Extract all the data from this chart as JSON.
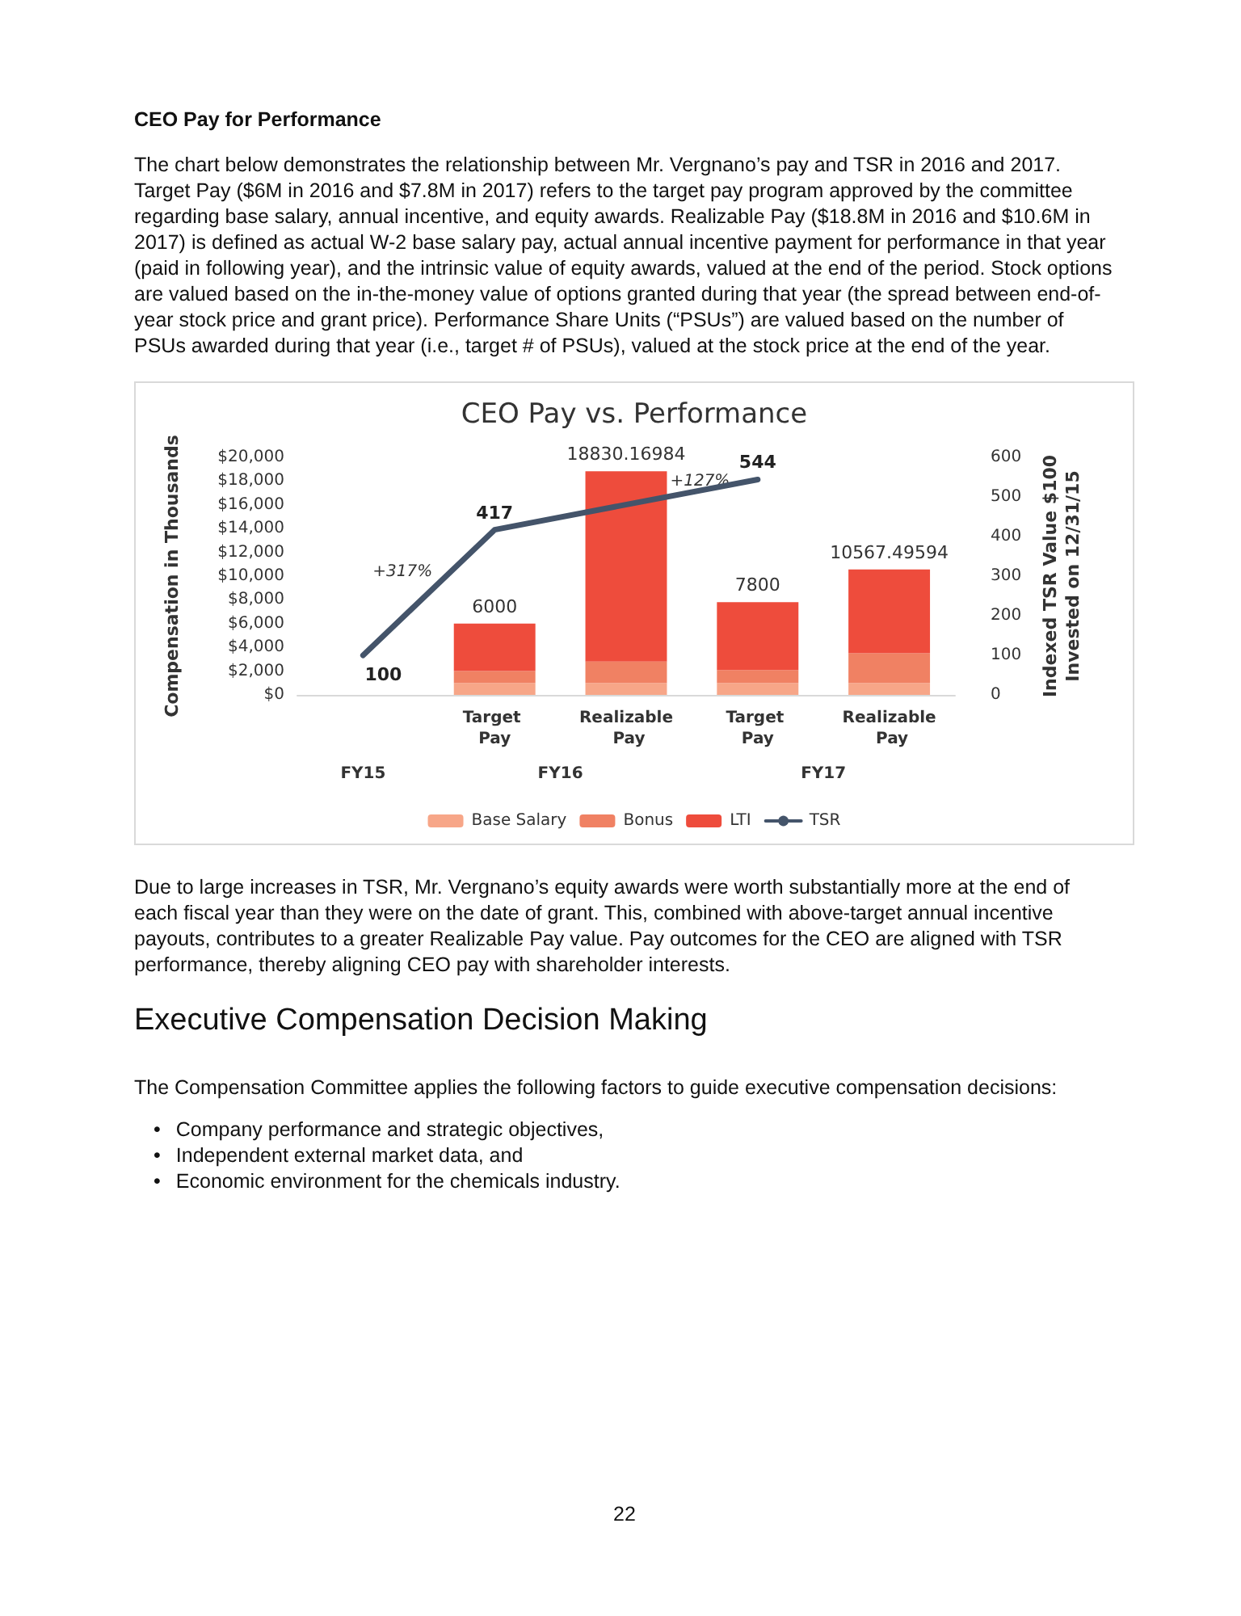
{
  "chart_data": {
    "type": "bar",
    "title": "CEO Pay vs. Performance",
    "ylabel": "Compensation in Thousands",
    "y2label": "Indexed TSR Value $100\nInvested on 12/31/15",
    "categories": [
      null,
      "Target Pay",
      "Realizable Pay",
      "Target Pay",
      "Realizable Pay"
    ],
    "stacked": true,
    "series": [
      {
        "name": "Base Salary",
        "color": "#f7a688",
        "values": [
          null,
          1000,
          1000,
          1000,
          1000
        ]
      },
      {
        "name": "Bonus",
        "color": "#f08163",
        "values": [
          null,
          1000,
          1800,
          1100,
          2500
        ]
      },
      {
        "name": "LTI",
        "color": "#ee4c3c",
        "values": [
          null,
          4000,
          16030.16984,
          5700,
          7067.49594
        ]
      },
      {
        "name": "TSR",
        "type": "line",
        "axis": "y2",
        "color": "#44546a",
        "values": [
          100,
          417,
          null,
          544,
          null
        ],
        "value_labels": [
          "100",
          "417",
          null,
          "544",
          null
        ]
      }
    ],
    "totals": [
      null,
      "6000",
      "18830.16984",
      "7800",
      "10567.49594"
    ],
    "ylim": [
      0,
      20000
    ],
    "yticks": [
      {
        "value": 0,
        "label": "$0"
      },
      {
        "value": 2000,
        "label": "$2,000"
      },
      {
        "value": 4000,
        "label": "$4,000"
      },
      {
        "value": 6000,
        "label": "$6,000"
      },
      {
        "value": 8000,
        "label": "$8,000"
      },
      {
        "value": 10000,
        "label": "$10,000"
      },
      {
        "value": 12000,
        "label": "$12,000"
      },
      {
        "value": 14000,
        "label": "$14,000"
      },
      {
        "value": 16000,
        "label": "$16,000"
      },
      {
        "value": 18000,
        "label": "$18,000"
      },
      {
        "value": 20000,
        "label": "$20,000"
      }
    ],
    "y2lim": [
      0,
      600
    ],
    "y2ticks": [
      0,
      100,
      200,
      300,
      400,
      500,
      600
    ],
    "legend": "bottom",
    "grid": false,
    "marker": "none",
    "line_style": "solid",
    "annotations": [
      "CEO Pay for Performance",
      "The chart below demonstrates the relationship between Mr. Vergnano’s pay and TSR in 2016 and 2017. Target Pay ($6M in 2016 and $7.8M in 2017) refers to the target pay program approved by the committee regarding base salary, annual incentive, and equity awards. Realizable Pay ($18.8M in 2016 and $10.6M in 2017) is defined as actual W-2 base salary pay, actual annual incentive payment for performance in that year (paid in following year), and the intrinsic value of equity awards, valued at the end of the period. Stock options are valued based on the in-the-money value of options granted during that year (the spread between end-of-year stock price and grant price). Performance Share Units (“PSUs”) are valued based on the number of PSUs awarded during that year (i.e., target # of PSUs), valued at the stock price at the end of the year.",
      "Due to large increases in TSR, Mr. Vergnano’s equity awards were worth substantially more at the end of each fiscal year than they were on the date of grant. This, combined with above-target annual incentive payouts, contributes to a greater Realizable Pay value. Pay outcomes for the CEO are aligned with TSR performance, thereby aligning CEO pay with shareholder interests.",
      "Executive Compensation Decision Making",
      "The Compensation Committee applies the following factors to guide executive compensation decisions:",
      "•\tCompany performance and strategic objectives,",
      "•\tIndependent external market data, and",
      "•\tEconomic environment for the chemicals industry.",
      "22",
      "+317%",
      "+127%",
      "FY15",
      "FY16",
      "FY17"
    ]
  }
}
